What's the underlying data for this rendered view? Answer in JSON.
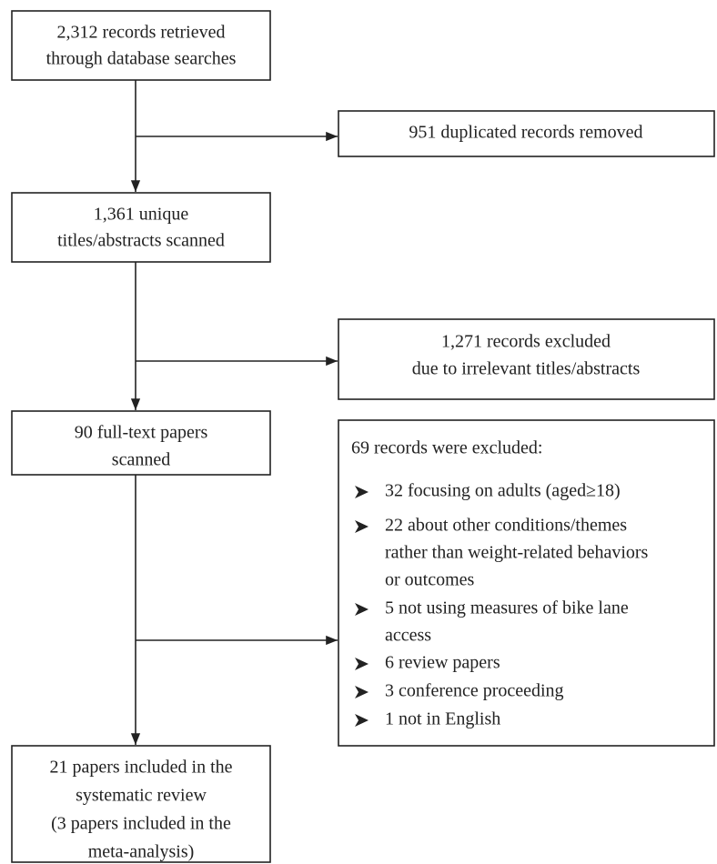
{
  "nodes": [
    {
      "lines": [
        "2,312 records retrieved",
        "through database searches"
      ]
    },
    {
      "lines": [
        "951 duplicated records removed"
      ]
    },
    {
      "lines": [
        "1,361 unique",
        "titles/abstracts scanned"
      ]
    },
    {
      "lines": [
        "1,271 records excluded",
        "due to irrelevant titles/abstracts"
      ]
    },
    {
      "lines": [
        "90 full-text papers",
        "scanned"
      ]
    },
    {
      "lines": [
        "21 papers included in the",
        "systematic review",
        "(3 papers included in the",
        "meta-analysis)"
      ]
    }
  ],
  "exclusions": {
    "heading": "69 records were excluded:",
    "items": [
      {
        "lines": [
          "32 focusing on adults (aged≥18)"
        ]
      },
      {
        "lines": [
          "22 about other conditions/themes",
          "rather than weight-related behaviors",
          "or outcomes"
        ]
      },
      {
        "lines": [
          "5 not using measures of bike lane",
          "access"
        ]
      },
      {
        "lines": [
          "6 review papers"
        ]
      },
      {
        "lines": [
          "3 conference proceeding"
        ]
      },
      {
        "lines": [
          "1 not in English"
        ]
      }
    ]
  }
}
